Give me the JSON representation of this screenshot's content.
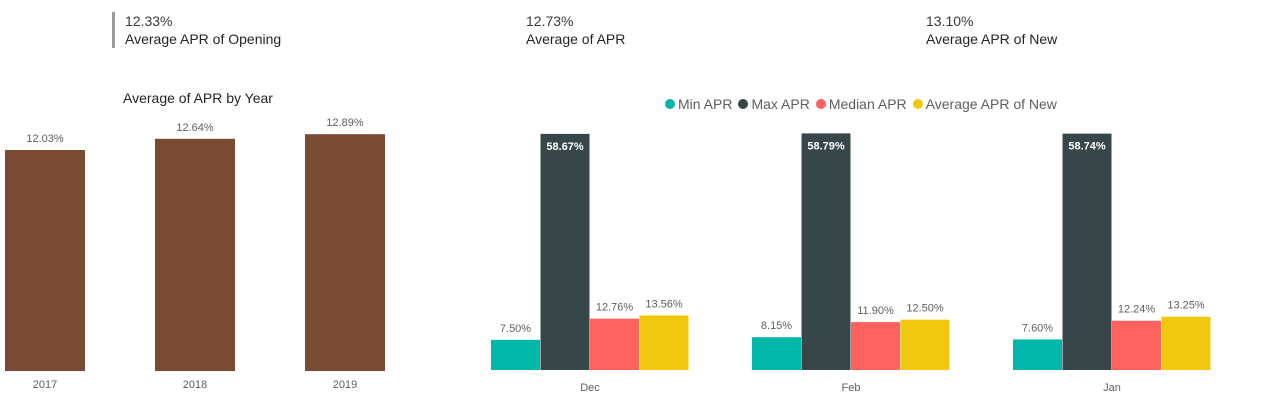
{
  "kpis": [
    {
      "value": "12.33%",
      "label": "Average APR of Opening"
    },
    {
      "value": "12.73%",
      "label": "Average of APR"
    },
    {
      "value": "13.10%",
      "label": "Average APR of New"
    }
  ],
  "chart_data": [
    {
      "type": "bar",
      "title": "Average of APR by Year",
      "categories": [
        "2017",
        "2018",
        "2019"
      ],
      "values": [
        12.03,
        12.64,
        12.89
      ],
      "data_labels": [
        "12.03%",
        "12.64%",
        "12.89%"
      ],
      "colors": [
        "#7B4A33"
      ],
      "ylim": [
        0,
        13.5
      ]
    },
    {
      "type": "bar",
      "title": "",
      "categories": [
        "Dec",
        "Feb",
        "Jan"
      ],
      "legend_position": "top",
      "ylim": [
        0,
        60
      ],
      "series": [
        {
          "name": "Min APR",
          "color": "#01B8AA",
          "values": [
            7.5,
            8.15,
            7.6
          ],
          "labels": [
            "7.50%",
            "8.15%",
            "7.60%"
          ],
          "label_inside": false
        },
        {
          "name": "Max APR",
          "color": "#374649",
          "values": [
            58.67,
            58.79,
            58.74
          ],
          "labels": [
            "58.67%",
            "58.79%",
            "58.74%"
          ],
          "label_inside": true
        },
        {
          "name": "Median APR",
          "color": "#FD625E",
          "values": [
            12.76,
            11.9,
            12.24
          ],
          "labels": [
            "12.76%",
            "11.90%",
            "12.24%"
          ],
          "label_inside": false
        },
        {
          "name": "Average APR of New",
          "color": "#F2C80F",
          "values": [
            13.56,
            12.5,
            13.25
          ],
          "labels": [
            "13.56%",
            "12.50%",
            "13.25%"
          ],
          "label_inside": false
        }
      ]
    }
  ]
}
